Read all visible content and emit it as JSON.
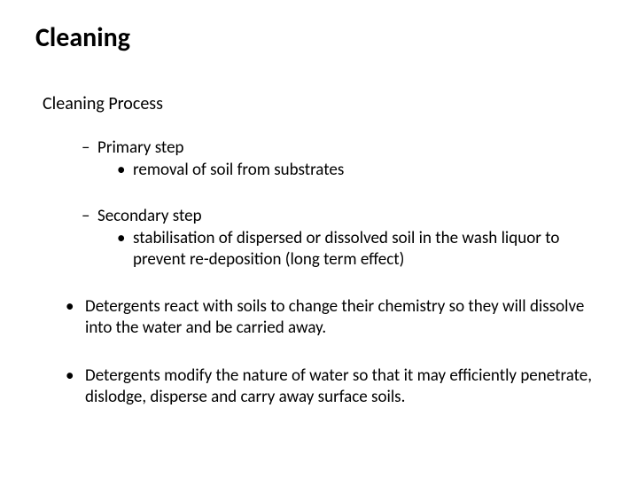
{
  "title": "Cleaning",
  "subtitle": "Cleaning Process",
  "sections": [
    {
      "heading": "Primary step",
      "items": [
        "removal of soil from substrates"
      ]
    },
    {
      "heading": "Secondary step",
      "items": [
        "stabilisation of dispersed or dissolved soil in the wash liquor to prevent re-deposition (long term effect)"
      ]
    }
  ],
  "bullets": [
    "Detergents react with soils to change their chemistry so they will dissolve into the water and be carried away.",
    "Detergents modify the nature of water so that it may efficiently penetrate, dislodge, disperse and carry away surface soils."
  ],
  "style": {
    "background_color": "#ffffff",
    "text_color": "#000000",
    "font_family": "Calibri",
    "title_fontsize": 30,
    "title_fontweight": 700,
    "subtitle_fontsize": 20,
    "body_fontsize": 19,
    "dash_marker": "–",
    "bullet_marker": "•",
    "line_height": 1.25
  }
}
